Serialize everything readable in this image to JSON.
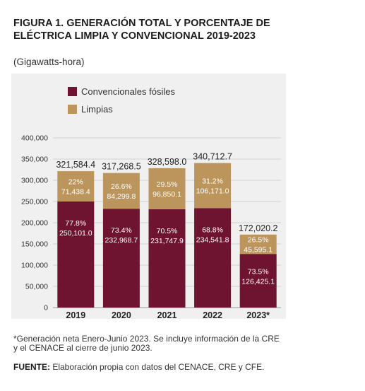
{
  "header": {
    "title": "FIGURA 1. GENERACIÓN TOTAL Y PORCENTAJE DE ELÉCTRICA LIMPIA Y CONVENCIONAL 2019-2023",
    "subtitle": "(Gigawatts-hora)"
  },
  "footer": {
    "footnote": "*Generación neta Enero-Junio 2023. Se incluye información de la CRE y el CENACE al cierre de junio 2023.",
    "source_label": "FUENTE:",
    "source_text": " Elaboración propia con datos del CENACE, CRE y CFE."
  },
  "colors": {
    "fossil": "#6e1431",
    "clean": "#bc955c",
    "panel": "#f0f0f0"
  },
  "chart_data": {
    "type": "bar",
    "stacked": true,
    "title": "FIGURA 1. GENERACIÓN TOTAL Y PORCENTAJE DE ELÉCTRICA LIMPIA Y CONVENCIONAL 2019-2023",
    "subtitle": "(Gigawatts-hora)",
    "xlabel": "",
    "ylabel": "",
    "categories": [
      "2019",
      "2020",
      "2021",
      "2022",
      "2023*"
    ],
    "ylim": [
      0,
      400000
    ],
    "yticks": [
      0,
      50000,
      100000,
      150000,
      200000,
      250000,
      300000,
      350000,
      400000
    ],
    "ytick_labels": [
      "0",
      "50,000",
      "100,000",
      "150,000",
      "200,000",
      "250,000",
      "300,000",
      "350,000",
      "400,000"
    ],
    "grid": true,
    "legend_position": "top-left",
    "series": [
      {
        "name": "Convencionales fósiles",
        "values": [
          250101.0,
          232968.7,
          231747.9,
          234541.8,
          126425.1
        ],
        "value_labels": [
          "250,101.0",
          "232,968.7",
          "231,747.9",
          "234,541.8",
          "126,425.1"
        ],
        "pct_labels": [
          "77.8%",
          "73.4%",
          "70.5%",
          "68.8%",
          "73.5%"
        ]
      },
      {
        "name": "Limpias",
        "values": [
          71438.4,
          84299.8,
          96850.1,
          106171.0,
          45595.1
        ],
        "value_labels": [
          "71,438.4",
          "84,299.8",
          "96,850.1",
          "106,171.0",
          "45,595.1"
        ],
        "pct_labels": [
          "22%",
          "26.6%",
          "29.5%",
          "31.2%",
          "26.5%"
        ]
      }
    ],
    "totals": [
      321584.4,
      317268.5,
      328598.0,
      340712.7,
      172020.2
    ],
    "total_labels": [
      "321,584.4",
      "317,268.5",
      "328,598.0",
      "340,712.7",
      "172,020.2"
    ]
  }
}
